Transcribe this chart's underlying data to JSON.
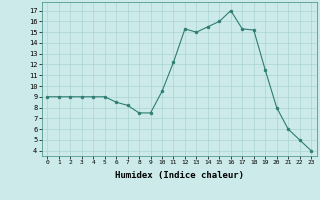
{
  "x": [
    0,
    1,
    2,
    3,
    4,
    5,
    6,
    7,
    8,
    9,
    10,
    11,
    12,
    13,
    14,
    15,
    16,
    17,
    18,
    19,
    20,
    21,
    22,
    23
  ],
  "y": [
    9,
    9,
    9,
    9,
    9,
    9,
    8.5,
    8.2,
    7.5,
    7.5,
    9.5,
    12.2,
    15.3,
    15,
    15.5,
    16,
    17,
    15.3,
    15.2,
    11.5,
    8,
    6,
    5,
    4
  ],
  "line_color": "#2e7d72",
  "marker_color": "#2e7d72",
  "bg_color": "#cceaea",
  "grid_color": "#aad4d4",
  "xlabel": "Humidex (Indice chaleur)",
  "xlabel_fontsize": 6.5,
  "ylabel_ticks": [
    4,
    5,
    6,
    7,
    8,
    9,
    10,
    11,
    12,
    13,
    14,
    15,
    16,
    17
  ],
  "xtick_labels": [
    "0",
    "1",
    "2",
    "3",
    "4",
    "5",
    "6",
    "7",
    "8",
    "9",
    "10",
    "11",
    "12",
    "13",
    "14",
    "15",
    "16",
    "17",
    "18",
    "19",
    "20",
    "21",
    "22",
    "23"
  ],
  "ylim": [
    3.5,
    17.8
  ],
  "xlim": [
    -0.5,
    23.5
  ]
}
